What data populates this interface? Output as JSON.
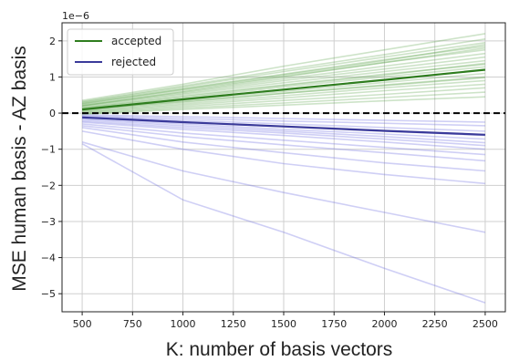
{
  "chart_data": {
    "type": "line",
    "xlabel": "K: number of basis vectors",
    "ylabel": "MSE human basis - AZ basis",
    "y_offset_label": "1e−6",
    "xlim": [
      400,
      2600
    ],
    "ylim": [
      -5.5,
      2.5
    ],
    "x_ticks": [
      500,
      750,
      1000,
      1250,
      1500,
      1750,
      2000,
      2250,
      2500
    ],
    "x_tick_labels": [
      "500",
      "750",
      "1000",
      "1250",
      "1500",
      "1750",
      "2000",
      "2250",
      "2500"
    ],
    "y_ticks": [
      -5,
      -4,
      -3,
      -2,
      -1,
      0,
      1,
      2
    ],
    "y_tick_labels": [
      "−5",
      "−4",
      "−3",
      "−2",
      "−1",
      "0",
      "1",
      "2"
    ],
    "grid": true,
    "legend_position": "top-left",
    "zero_line": {
      "y": 0,
      "style": "dashed",
      "color": "#000000"
    },
    "x": [
      500,
      1000,
      1500,
      2000,
      2500
    ],
    "series": [
      {
        "name": "accepted",
        "color": "#2e7d1e",
        "mean": [
          0.1,
          0.38,
          0.65,
          0.92,
          1.2
        ],
        "individual": [
          [
            0.35,
            0.8,
            1.3,
            1.75,
            2.2
          ],
          [
            0.32,
            0.75,
            1.2,
            1.62,
            2.05
          ],
          [
            0.3,
            0.72,
            1.15,
            1.55,
            1.95
          ],
          [
            0.28,
            0.68,
            1.08,
            1.48,
            1.85
          ],
          [
            0.25,
            0.64,
            1.02,
            1.4,
            1.75
          ],
          [
            0.22,
            0.58,
            0.95,
            1.3,
            1.65
          ],
          [
            0.2,
            0.55,
            0.9,
            1.22,
            1.55
          ],
          [
            0.18,
            0.52,
            0.84,
            1.15,
            1.45
          ],
          [
            0.15,
            0.48,
            0.78,
            1.08,
            1.35
          ],
          [
            0.12,
            0.42,
            0.72,
            1.0,
            1.28
          ],
          [
            0.1,
            0.38,
            0.66,
            0.92,
            1.2
          ],
          [
            0.08,
            0.35,
            0.6,
            0.85,
            1.1
          ],
          [
            0.06,
            0.3,
            0.55,
            0.78,
            1.0
          ],
          [
            0.04,
            0.26,
            0.48,
            0.7,
            0.9
          ],
          [
            0.02,
            0.22,
            0.42,
            0.62,
            0.8
          ],
          [
            0.0,
            0.18,
            0.35,
            0.52,
            0.7
          ],
          [
            -0.02,
            0.14,
            0.28,
            0.43,
            0.58
          ],
          [
            -0.03,
            0.1,
            0.22,
            0.34,
            0.45
          ],
          [
            0.2,
            0.6,
            1.0,
            1.4,
            1.8
          ],
          [
            0.14,
            0.45,
            0.76,
            1.05,
            1.38
          ],
          [
            0.26,
            0.66,
            1.06,
            1.45,
            1.9
          ],
          [
            0.1,
            0.32,
            0.55,
            0.76,
            0.98
          ]
        ]
      },
      {
        "name": "rejected",
        "color": "#3a3a9a",
        "mean": [
          -0.12,
          -0.25,
          -0.37,
          -0.49,
          -0.6
        ],
        "individual": [
          [
            -0.05,
            -0.1,
            -0.15,
            -0.2,
            -0.25
          ],
          [
            -0.08,
            -0.15,
            -0.22,
            -0.28,
            -0.35
          ],
          [
            -0.1,
            -0.2,
            -0.3,
            -0.4,
            -0.5
          ],
          [
            -0.12,
            -0.25,
            -0.38,
            -0.5,
            -0.62
          ],
          [
            -0.15,
            -0.3,
            -0.45,
            -0.58,
            -0.72
          ],
          [
            -0.18,
            -0.35,
            -0.5,
            -0.65,
            -0.82
          ],
          [
            -0.22,
            -0.4,
            -0.55,
            -0.72,
            -0.9
          ],
          [
            -0.25,
            -0.45,
            -0.62,
            -0.8,
            -1.0
          ],
          [
            -0.3,
            -0.55,
            -0.75,
            -0.95,
            -1.15
          ],
          [
            -0.35,
            -0.65,
            -0.88,
            -1.1,
            -1.32
          ],
          [
            -0.4,
            -0.8,
            -1.1,
            -1.38,
            -1.6
          ],
          [
            -0.5,
            -1.0,
            -1.4,
            -1.7,
            -1.95
          ],
          [
            -0.8,
            -1.6,
            -2.2,
            -2.75,
            -3.3
          ],
          [
            -0.85,
            -2.4,
            -3.3,
            -4.3,
            -5.25
          ]
        ]
      }
    ]
  }
}
